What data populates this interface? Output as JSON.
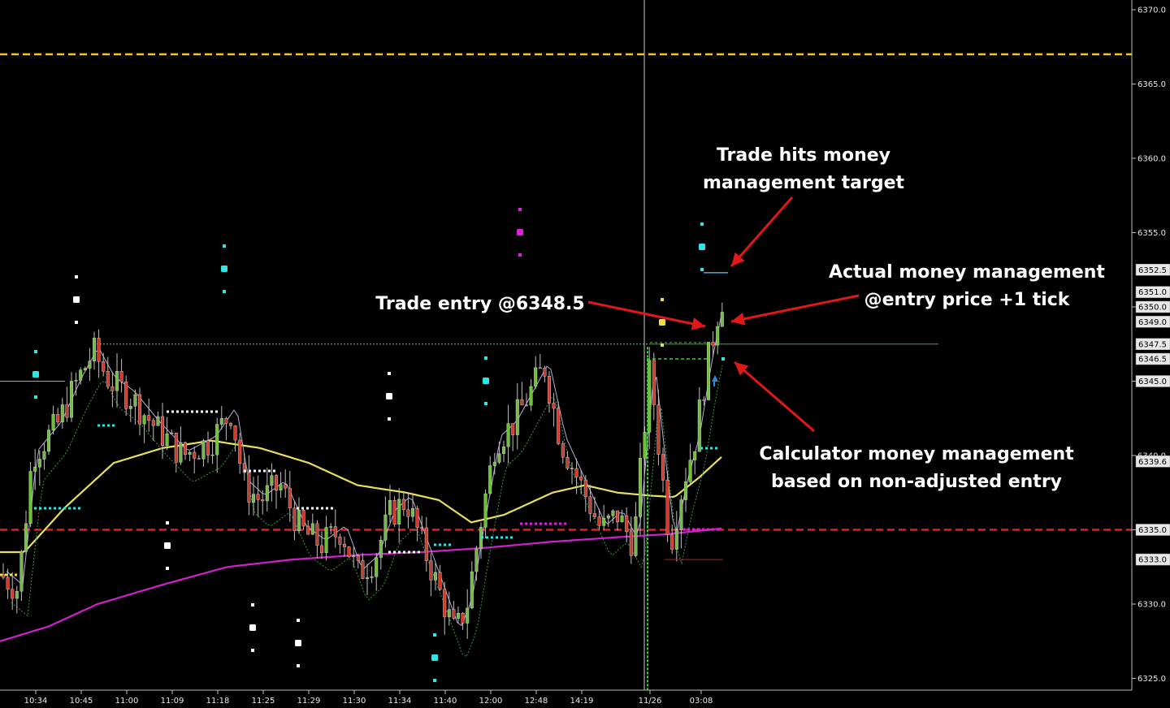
{
  "chart_data": {
    "type": "candlestick",
    "y_axis": {
      "ylim": [
        6324.5,
        6370.5
      ],
      "tick_labels": [
        "6370.0",
        "6365.0",
        "6360.0",
        "6355.0",
        "6350.0",
        "6345.0",
        "6340.0",
        "6335.0",
        "6330.0",
        "6325.0"
      ],
      "tick_values": [
        6370,
        6365,
        6360,
        6355,
        6350,
        6345,
        6340,
        6335,
        6330,
        6325
      ]
    },
    "x_axis": {
      "tick_labels": [
        "10:34",
        "10:45",
        "11:00",
        "11:09",
        "11:18",
        "11:25",
        "11:29",
        "11:30",
        "11:34",
        "11:40",
        "12:00",
        "12:48",
        "14:19",
        "11/26",
        "03:08"
      ]
    },
    "price_tags": [
      {
        "label": "6352.5",
        "value": 6352.5,
        "color": "#000000"
      },
      {
        "label": "6351.0",
        "value": 6351.0,
        "color": "#000000"
      },
      {
        "label": "6350.0",
        "value": 6350.0,
        "color": "#000000"
      },
      {
        "label": "6349.0",
        "value": 6349.0,
        "color": "#000000"
      },
      {
        "label": "6347.5",
        "value": 6347.5,
        "color": "#000000"
      },
      {
        "label": "6346.5",
        "value": 6346.5,
        "color": "#000000"
      },
      {
        "label": "6345.0",
        "value": 6345.0,
        "color": "#000000"
      },
      {
        "label": "6339.6",
        "value": 6339.6,
        "color": "#000000"
      },
      {
        "label": "6335.0",
        "value": 6335.0,
        "color": "#000000"
      },
      {
        "label": "6333.0",
        "value": 6333.0,
        "color": "#000000"
      }
    ],
    "horizontal_levels": [
      {
        "value": 6367.0,
        "color": "#f5c518",
        "style": "dashed"
      },
      {
        "value": 6335.0,
        "color": "#e02020",
        "style": "dashed"
      }
    ],
    "annotations": [
      {
        "id": "target",
        "lines": [
          "Trade hits money",
          "management target"
        ]
      },
      {
        "id": "actual",
        "lines": [
          "Actual money management",
          "@entry price +1 tick"
        ]
      },
      {
        "id": "entry",
        "lines": [
          "Trade entry @6348.5"
        ]
      },
      {
        "id": "calculator",
        "lines": [
          "Calculator money management",
          "based on non-adjusted entry"
        ]
      }
    ],
    "colors": {
      "up_candle": "#6fbf3a",
      "down_candle": "#d03a2a",
      "ma_yellow": "#e8e05a",
      "ma_magenta": "#d31fd0",
      "dots_cyan": "#2ee6e6",
      "dots_white": "#ffffff",
      "dots_magenta": "#e020e0",
      "arrow": "#e01818"
    }
  }
}
